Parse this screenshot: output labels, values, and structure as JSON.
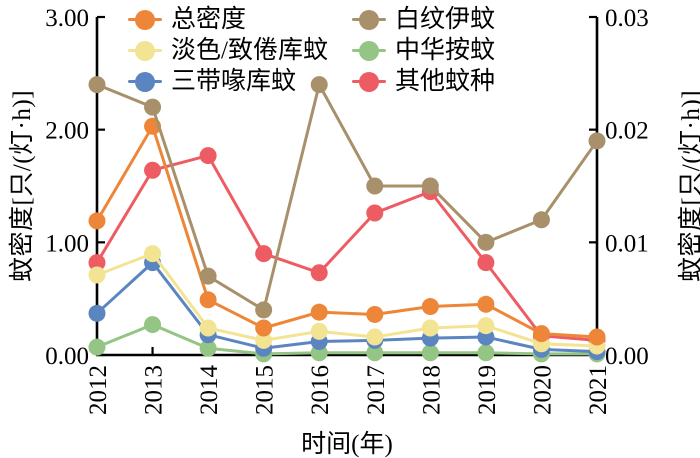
{
  "figure": {
    "x_axis_title": "时间(年)",
    "left_axis_title": "蚊密度[只/(灯·h)]",
    "right_axis_title": "蚊密度[只/(灯·h)]"
  },
  "chart_data": {
    "type": "line",
    "title": "",
    "xlabel": "时间(年)",
    "ylabel_left": "蚊密度[只/(灯·h)]",
    "ylabel_right": "蚊密度[只/(灯·h)]",
    "grid": false,
    "legend_position": "top inside, two columns",
    "x_categories": [
      "2012",
      "2013",
      "2014",
      "2015",
      "2016",
      "2017",
      "2018",
      "2019",
      "2020",
      "2021"
    ],
    "left_axis": {
      "min": 0,
      "max": 3,
      "ticks": [
        {
          "v": 0,
          "label": "0.00"
        },
        {
          "v": 1,
          "label": "1.00"
        },
        {
          "v": 2,
          "label": "2.00"
        },
        {
          "v": 3,
          "label": "3.00"
        }
      ]
    },
    "right_axis": {
      "min": 0,
      "max": 0.03,
      "ticks": [
        {
          "v": 0,
          "label": "0.00"
        },
        {
          "v": 0.01,
          "label": "0.01"
        },
        {
          "v": 0.02,
          "label": "0.02"
        },
        {
          "v": 0.03,
          "label": "0.03"
        }
      ]
    },
    "series": [
      {
        "id": "total-density",
        "name": "总密度",
        "color": "#ED8639",
        "axis": "left",
        "values": [
          1.19,
          2.03,
          0.49,
          0.24,
          0.38,
          0.36,
          0.43,
          0.45,
          0.19,
          0.16
        ]
      },
      {
        "id": "culex-pipiens-quinquefasciatus",
        "name": "淡色/致倦库蚊",
        "color": "#F2E492",
        "axis": "left",
        "values": [
          0.71,
          0.9,
          0.24,
          0.13,
          0.21,
          0.16,
          0.24,
          0.26,
          0.1,
          0.08
        ]
      },
      {
        "id": "culex-tritaeniorhynchus",
        "name": "三带喙库蚊",
        "color": "#5B85C0",
        "axis": "left",
        "values": [
          0.37,
          0.82,
          0.18,
          0.06,
          0.12,
          0.13,
          0.15,
          0.16,
          0.05,
          0.03
        ]
      },
      {
        "id": "aedes-albopictus",
        "name": "白纹伊蚊",
        "color": "#A7906A",
        "axis": "right",
        "values": [
          0.024,
          0.022,
          0.007,
          0.004,
          0.024,
          0.015,
          0.015,
          0.01,
          0.012,
          0.019
        ]
      },
      {
        "id": "anopheles-sinensis",
        "name": "中华按蚊",
        "color": "#94C584",
        "axis": "left",
        "values": [
          0.07,
          0.27,
          0.06,
          0.01,
          0.02,
          0.02,
          0.02,
          0.02,
          0.01,
          0.01
        ]
      },
      {
        "id": "other-species",
        "name": "其他蚊种",
        "color": "#EE5C63",
        "axis": "left",
        "values": [
          0.82,
          1.64,
          1.77,
          0.9,
          0.73,
          1.26,
          1.45,
          0.82,
          0.17,
          0.13
        ]
      }
    ],
    "draw_order": [
      "other-species",
      "anopheles-sinensis",
      "culex-tritaeniorhynchus",
      "culex-pipiens-quinquefasciatus",
      "total-density",
      "aedes-albopictus"
    ]
  },
  "legend": {
    "columns": [
      {
        "items": [
          "总密度",
          "淡色/致倦库蚊",
          "三带喙库蚊"
        ]
      },
      {
        "items": [
          "白纹伊蚊",
          "中华按蚊",
          "其他蚊种"
        ]
      }
    ]
  }
}
